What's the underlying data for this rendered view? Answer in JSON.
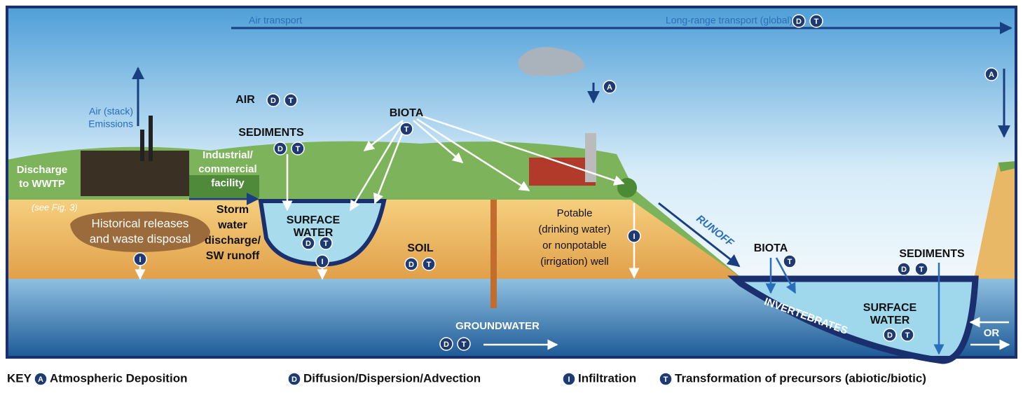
{
  "labels": [
    {
      "lines": [
        "Air transport"
      ]
    },
    {
      "lines": [
        "Long-range transport (global)"
      ],
      "badges": [
        "D",
        "T"
      ]
    },
    {
      "lines": [
        "Air (stack)",
        "Emissions"
      ]
    },
    {
      "lines": [
        "AIR"
      ],
      "badges": [
        "D",
        "T"
      ]
    },
    {
      "lines": [
        "BIOTA"
      ],
      "badges": [
        "T"
      ]
    },
    {
      "lines": [
        "SEDIMENTS"
      ],
      "badges": [
        "D",
        "T"
      ]
    },
    {
      "lines": [
        "Industrial/",
        "commercial",
        "facility"
      ]
    },
    {
      "lines": [
        "Discharge",
        "to WWTP"
      ]
    },
    {
      "lines": [
        "(see Fig. 3)"
      ]
    },
    {
      "lines": [
        "Historical releases",
        "and waste disposal"
      ]
    },
    {
      "lines": [
        "Storm",
        "water",
        "discharge/",
        "SW runoff"
      ]
    },
    {
      "lines": [
        "SURFACE",
        "WATER"
      ],
      "badges": [
        "D",
        "T"
      ]
    },
    {
      "lines": [
        "SOIL"
      ],
      "badges": [
        "D",
        "T"
      ]
    },
    {
      "lines": [
        "Potable",
        "(drinking water)",
        "or nonpotable",
        "(irrigation) well"
      ]
    },
    {
      "lines": [
        "RUNOFF"
      ]
    },
    {
      "lines": [
        "BIOTA"
      ],
      "badges": [
        "T"
      ]
    },
    {
      "lines": [
        "SEDIMENTS"
      ],
      "badges": [
        "D",
        "T"
      ]
    },
    {
      "lines": [
        "INVERTEBRATES"
      ]
    },
    {
      "lines": [
        "SURFACE",
        "WATER"
      ],
      "badges": [
        "D",
        "T"
      ]
    },
    {
      "lines": [
        "OR"
      ]
    },
    {
      "lines": [
        "GROUNDWATER"
      ],
      "badges": [
        "D",
        "T"
      ]
    }
  ],
  "markers": [
    "A",
    "A",
    "I",
    "I",
    "I"
  ],
  "key": {
    "title": "KEY",
    "items": [
      {
        "badge": "A",
        "text": "Atmospheric Deposition"
      },
      {
        "badge": "D",
        "text": "Diffusion/Dispersion/Advection"
      },
      {
        "badge": "I",
        "text": "Infiltration"
      },
      {
        "badge": "T",
        "text": "Transformation of precursors (abiotic/biotic)"
      }
    ]
  }
}
